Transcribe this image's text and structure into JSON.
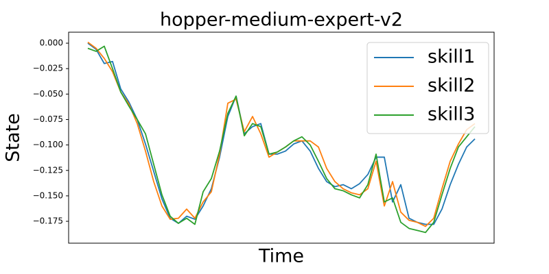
{
  "chart_data": {
    "type": "line",
    "title": "hopper-medium-expert-v2",
    "x_label": "Time",
    "y_label": "State",
    "x": [
      0,
      1,
      2,
      3,
      4,
      5,
      6,
      7,
      8,
      9,
      10,
      11,
      12,
      13,
      14,
      15,
      16,
      17,
      18,
      19,
      20,
      21,
      22,
      23,
      24,
      25,
      26,
      27,
      28,
      29,
      30,
      31,
      32,
      33,
      34,
      35,
      36,
      37,
      38,
      39,
      40,
      41,
      42,
      43,
      44,
      45,
      46,
      47
    ],
    "xlim": [
      -2.33,
      49.33
    ],
    "ylim": [
      -0.1965,
      0.0108
    ],
    "yticks": [
      {
        "value": 0,
        "label": "0.000"
      },
      {
        "value": -0.025,
        "label": "−0.025"
      },
      {
        "value": -0.05,
        "label": "−0.050"
      },
      {
        "value": -0.075,
        "label": "−0.075"
      },
      {
        "value": -0.1,
        "label": "−0.100"
      },
      {
        "value": -0.125,
        "label": "−0.125"
      },
      {
        "value": -0.15,
        "label": "−0.150"
      },
      {
        "value": -0.175,
        "label": "−0.175"
      }
    ],
    "legend": "upper right",
    "series": [
      {
        "name": "skill1",
        "color": "#1f77b4",
        "values": [
          0.0,
          -0.006,
          -0.02,
          -0.018,
          -0.045,
          -0.058,
          -0.075,
          -0.099,
          -0.126,
          -0.153,
          -0.172,
          -0.177,
          -0.17,
          -0.173,
          -0.16,
          -0.143,
          -0.112,
          -0.072,
          -0.052,
          -0.089,
          -0.082,
          -0.079,
          -0.109,
          -0.109,
          -0.106,
          -0.099,
          -0.096,
          -0.106,
          -0.123,
          -0.136,
          -0.141,
          -0.139,
          -0.143,
          -0.138,
          -0.129,
          -0.112,
          -0.112,
          -0.156,
          -0.139,
          -0.172,
          -0.176,
          -0.178,
          -0.178,
          -0.163,
          -0.139,
          -0.119,
          -0.102,
          -0.094
        ]
      },
      {
        "name": "skill2",
        "color": "#ff7f0e",
        "values": [
          0.001,
          -0.005,
          -0.015,
          -0.028,
          -0.048,
          -0.06,
          -0.079,
          -0.106,
          -0.136,
          -0.16,
          -0.173,
          -0.172,
          -0.163,
          -0.172,
          -0.156,
          -0.146,
          -0.109,
          -0.059,
          -0.055,
          -0.087,
          -0.072,
          -0.089,
          -0.112,
          -0.107,
          -0.102,
          -0.096,
          -0.096,
          -0.096,
          -0.102,
          -0.123,
          -0.136,
          -0.143,
          -0.147,
          -0.149,
          -0.143,
          -0.116,
          -0.16,
          -0.136,
          -0.166,
          -0.174,
          -0.176,
          -0.18,
          -0.172,
          -0.143,
          -0.116,
          -0.099,
          -0.085,
          -0.079
        ]
      },
      {
        "name": "skill3",
        "color": "#2ca02c",
        "values": [
          -0.005,
          -0.008,
          -0.003,
          -0.025,
          -0.048,
          -0.062,
          -0.075,
          -0.089,
          -0.119,
          -0.149,
          -0.17,
          -0.177,
          -0.172,
          -0.178,
          -0.146,
          -0.133,
          -0.106,
          -0.069,
          -0.052,
          -0.091,
          -0.079,
          -0.082,
          -0.109,
          -0.107,
          -0.102,
          -0.096,
          -0.092,
          -0.1,
          -0.116,
          -0.133,
          -0.143,
          -0.145,
          -0.149,
          -0.152,
          -0.139,
          -0.109,
          -0.156,
          -0.152,
          -0.176,
          -0.182,
          -0.184,
          -0.186,
          -0.176,
          -0.149,
          -0.123,
          -0.102,
          -0.092,
          -0.082
        ]
      }
    ]
  }
}
